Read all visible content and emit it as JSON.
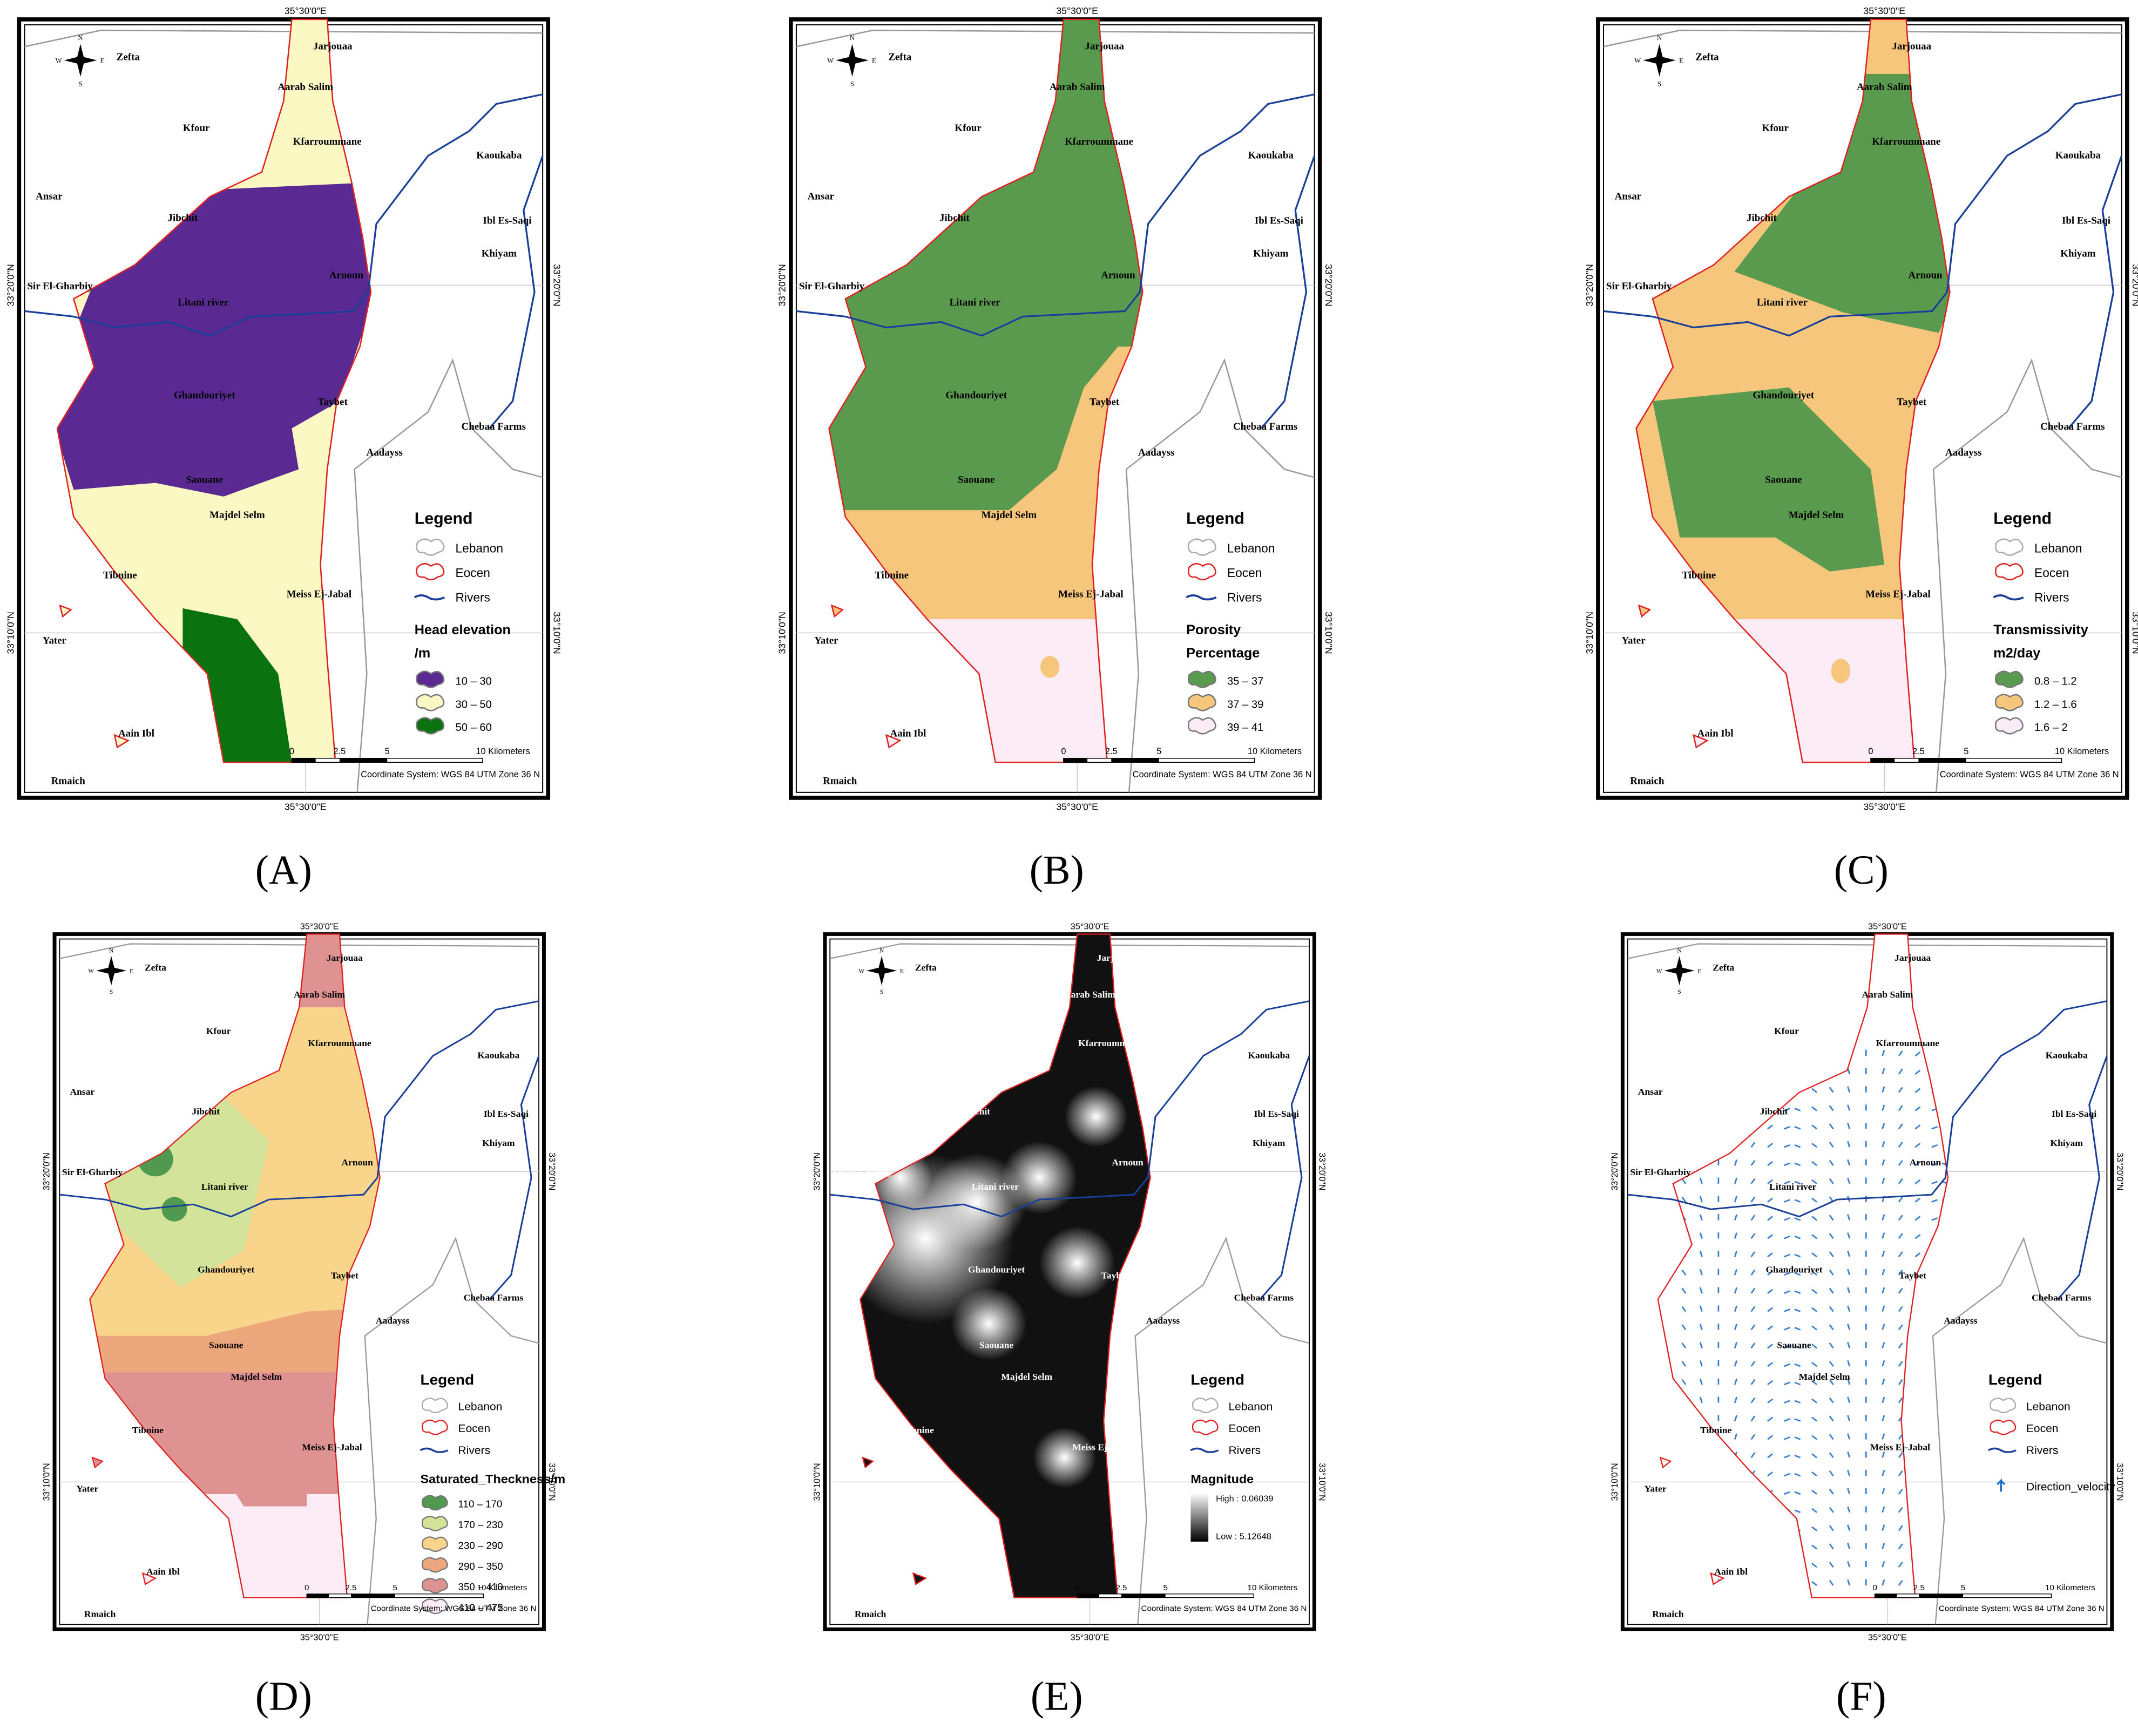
{
  "map": {
    "coords": {
      "lon": "35°30'0\"E",
      "lat_north": "33°20'0\"N",
      "lat_south": "33°10'0\"N"
    },
    "compass": {
      "n": "N",
      "s": "S",
      "e": "E",
      "w": "W"
    },
    "places": [
      "Zefta",
      "Jarjouaa",
      "Aarab Salim",
      "Kfour",
      "Kfarroummane",
      "Kaoukaba",
      "Ansar",
      "Jibchit",
      "Ibl Es-Saqi",
      "Arnoun",
      "Khiyam",
      "Sir El-Gharbiy",
      "Litani river",
      "Ghandouriyet",
      "Taybet",
      "Chebaa Farms",
      "Aadayss",
      "Saouane",
      "Majdel Selm",
      "Tibnine",
      "Meiss Ej-Jabal",
      "Yater",
      "Aain Ibl",
      "Rmaich"
    ],
    "legend_title": "Legend",
    "legend_base": [
      "Lebanon",
      "Eocen",
      "Rivers"
    ],
    "scale_labels": [
      "0",
      "2.5",
      "5",
      "10 Kilometers"
    ],
    "coordinate_system": "Coordinate System: WGS 84 UTM Zone 36 N"
  },
  "panels": [
    {
      "label": "(A)",
      "legend_heading": [
        "Head elevation",
        "/m"
      ],
      "classes": [
        {
          "label": "10 – 30",
          "color": "#5a2a92"
        },
        {
          "label": "30 – 50",
          "color": "#fbf8c4"
        },
        {
          "label": "50 – 60",
          "color": "#0a7310"
        }
      ]
    },
    {
      "label": "(B)",
      "legend_heading": [
        "Porosity",
        "Percentage"
      ],
      "classes": [
        {
          "label": "35 – 37",
          "color": "#5a9a4e"
        },
        {
          "label": "37 – 39",
          "color": "#f7c67d"
        },
        {
          "label": "39 – 41",
          "color": "#fbecf6"
        }
      ]
    },
    {
      "label": "(C)",
      "legend_heading": [
        "Transmissivity",
        "m2/day"
      ],
      "classes": [
        {
          "label": "0.8 – 1.2",
          "color": "#5a9a4e"
        },
        {
          "label": "1.2 – 1.6",
          "color": "#f7c67d"
        },
        {
          "label": "1.6 – 2",
          "color": "#fbecf6"
        }
      ]
    },
    {
      "label": "(D)",
      "legend_heading": [
        "Saturated_Theckness/m"
      ],
      "classes": [
        {
          "label": "110 – 170",
          "color": "#4f9a4f"
        },
        {
          "label": "170 – 230",
          "color": "#d4e39a"
        },
        {
          "label": "230 – 290",
          "color": "#f8d58a"
        },
        {
          "label": "290 – 350",
          "color": "#eca77c"
        },
        {
          "label": "350 – 410",
          "color": "#de9292"
        },
        {
          "label": "410 – 475",
          "color": "#fbecf6"
        }
      ]
    },
    {
      "label": "(E)",
      "legend_heading": [
        "Magnitude"
      ],
      "classes": [],
      "range": {
        "high": "High : 0.06039",
        "low": "Low : 5.12648"
      }
    },
    {
      "label": "(F)",
      "legend_heading": [],
      "classes": [],
      "extra": "Direction_velocity"
    }
  ]
}
